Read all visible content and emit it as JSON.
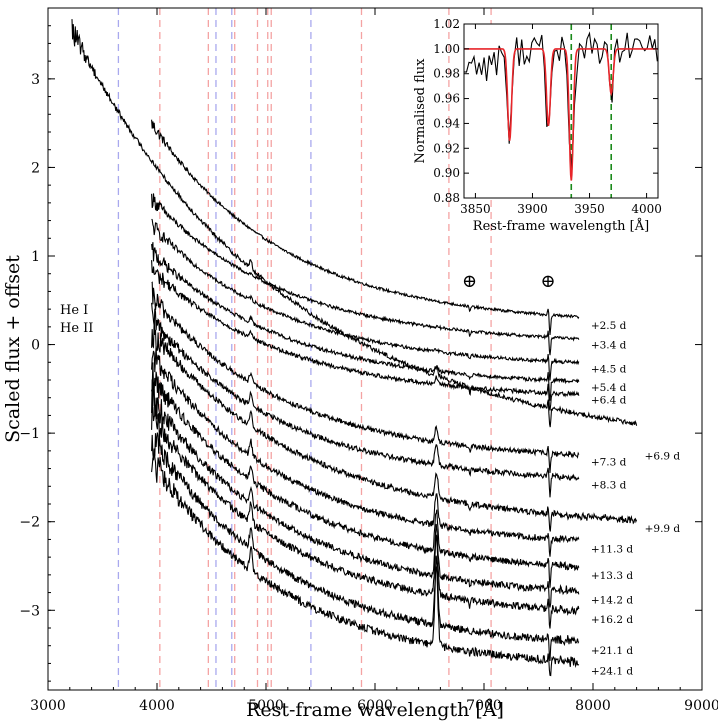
{
  "chart_data": [
    {
      "type": "line",
      "xlabel": "Rest-frame wavelength [Å]",
      "ylabel": "Scaled flux + offset",
      "xlim": [
        3000,
        9000
      ],
      "ylim": [
        -3.9,
        3.8
      ],
      "xticks": [
        "3000",
        "4000",
        "5000",
        "6000",
        "7000",
        "8000",
        "9000"
      ],
      "yticks": [
        "3",
        "2",
        "1",
        "0",
        "−1",
        "−2",
        "−3"
      ],
      "xtick_values": [
        3000,
        4000,
        5000,
        6000,
        7000,
        8000,
        9000
      ],
      "ytick_values": [
        3,
        2,
        1,
        0,
        -1,
        -2,
        -3
      ],
      "legend": [
        {
          "label": "He I",
          "color": "#e8252a"
        },
        {
          "label": "He II",
          "color": "#2427d4"
        }
      ],
      "line_markers": {
        "he_i": [
          4026,
          4471,
          4713,
          4922,
          5016,
          5048,
          5876,
          6678,
          7065
        ],
        "he_ii": [
          3646,
          4541,
          4686,
          5412
        ],
        "he_i_color": "#f4a3a3",
        "he_ii_color": "#a9a9ee"
      },
      "telluric_markers": [
        {
          "symbol": "⊕",
          "x": 6880
        },
        {
          "symbol": "⊕",
          "x": 7600
        }
      ],
      "series": [
        {
          "name": "+2.5 d",
          "x_start": 3950,
          "x_end": 7870,
          "y_start": 2.5,
          "y_end": 0.22
        },
        {
          "name": "+3.4 d",
          "x_start": 3950,
          "x_end": 7870,
          "y_start": 1.65,
          "y_end": 0.0
        },
        {
          "name": "+4.5 d",
          "x_start": 3950,
          "x_end": 7870,
          "y_start": 1.35,
          "y_end": -0.27
        },
        {
          "name": "+5.4 d",
          "x_start": 3950,
          "x_end": 7870,
          "y_start": 1.05,
          "y_end": -0.48
        },
        {
          "name": "+6.4 d",
          "x_start": 3950,
          "x_end": 7870,
          "y_start": 0.85,
          "y_end": -0.62
        },
        {
          "name": "+6.9 d",
          "x_start": 3220,
          "x_end": 8400,
          "y_start": 3.55,
          "y_end": -1.25
        },
        {
          "name": "+7.3 d",
          "x_start": 3950,
          "x_end": 7870,
          "y_start": 0.55,
          "y_end": -1.32
        },
        {
          "name": "+8.3 d",
          "x_start": 3950,
          "x_end": 7870,
          "y_start": 0.3,
          "y_end": -1.58
        },
        {
          "name": "+9.9 d",
          "x_start": 3950,
          "x_end": 8400,
          "y_start": 0.15,
          "y_end": -2.07
        },
        {
          "name": "+11.3 d",
          "x_start": 3950,
          "x_end": 7870,
          "y_start": -0.1,
          "y_end": -2.3
        },
        {
          "name": "+13.3 d",
          "x_start": 3950,
          "x_end": 7870,
          "y_start": -0.35,
          "y_end": -2.6
        },
        {
          "name": "+14.2 d",
          "x_start": 3950,
          "x_end": 7870,
          "y_start": -0.6,
          "y_end": -2.88
        },
        {
          "name": "+16.2 d",
          "x_start": 3950,
          "x_end": 7870,
          "y_start": -0.8,
          "y_end": -3.1
        },
        {
          "name": "+21.1 d",
          "x_start": 3950,
          "x_end": 7870,
          "y_start": -1.05,
          "y_end": -3.45
        },
        {
          "name": "+24.1 d",
          "x_start": 3950,
          "x_end": 7870,
          "y_start": -1.3,
          "y_end": -3.68
        }
      ]
    },
    {
      "type": "line",
      "xlabel": "Rest-frame wavelength [Å]",
      "ylabel": "Normalised flux",
      "xlim": [
        3840,
        4010
      ],
      "ylim": [
        0.88,
        1.02
      ],
      "xticks": [
        "3850",
        "3900",
        "3950",
        "4000"
      ],
      "xtick_values": [
        3850,
        3900,
        3950,
        4000
      ],
      "yticks": [
        "1.02",
        "1.00",
        "0.98",
        "0.96",
        "0.94",
        "0.92",
        "0.90",
        "0.88"
      ],
      "ytick_values": [
        1.02,
        1.0,
        0.98,
        0.96,
        0.94,
        0.92,
        0.9,
        0.88
      ],
      "markers": [
        3934,
        3969
      ],
      "marker_color": "#1a8a1a",
      "model_color": "#e8252a",
      "model_absorptions": [
        {
          "x": 3880,
          "depth": 0.074
        },
        {
          "x": 3914,
          "depth": 0.062
        },
        {
          "x": 3934,
          "depth": 0.106
        },
        {
          "x": 3969,
          "depth": 0.036
        }
      ]
    }
  ]
}
